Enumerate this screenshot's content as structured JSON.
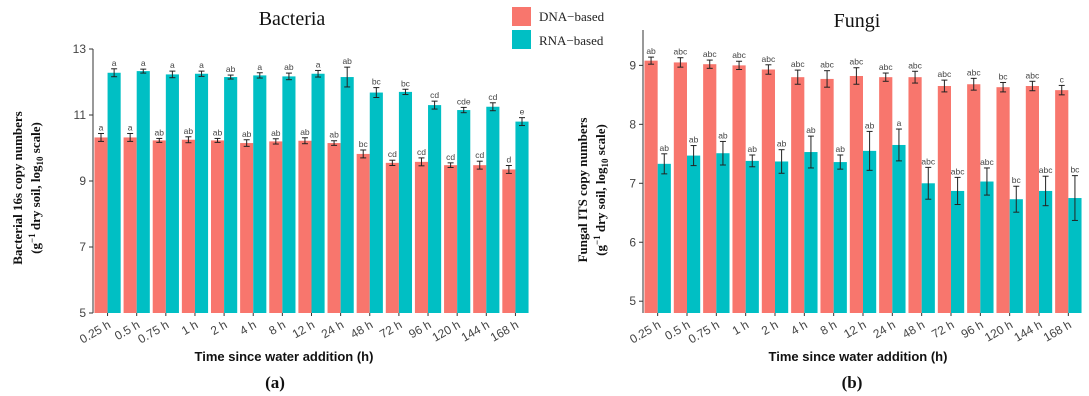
{
  "legend": [
    {
      "label": "DNA−based",
      "color": "#F8766D"
    },
    {
      "label": "RNA−based",
      "color": "#00BFC4"
    }
  ],
  "chart_data": [
    {
      "type": "bar",
      "panel_label": "(a)",
      "title": "Bacteria",
      "xlabel": "Time since water addition (h)",
      "ylabel_line1": "Bacterial 16s  copy numbers",
      "ylabel_line2_pre": "(g",
      "ylabel_line2_sup": "−1",
      "ylabel_line2_mid": " dry soil, log",
      "ylabel_line2_sub": "10",
      "ylabel_line2_post": " scale)",
      "ylim": [
        5,
        13
      ],
      "yticks": [
        5,
        7,
        9,
        11,
        13
      ],
      "categories": [
        "0.25 h",
        "0.5 h",
        "0.75 h",
        "1 h",
        "2 h",
        "4 h",
        "8 h",
        "12 h",
        "24 h",
        "48 h",
        "72 h",
        "96 h",
        "120 h",
        "144 h",
        "168 h"
      ],
      "series": [
        {
          "name": "DNA−based",
          "color": "#F8766D",
          "values": [
            10.32,
            10.32,
            10.23,
            10.25,
            10.23,
            10.15,
            10.2,
            10.22,
            10.15,
            9.82,
            9.55,
            9.58,
            9.48,
            9.48,
            9.35
          ],
          "errors": [
            0.12,
            0.12,
            0.06,
            0.09,
            0.06,
            0.1,
            0.08,
            0.09,
            0.07,
            0.12,
            0.08,
            0.12,
            0.07,
            0.12,
            0.12
          ],
          "labels": [
            "a",
            "a",
            "ab",
            "ab",
            "ab",
            "ab",
            "ab",
            "ab",
            "ab",
            "bc",
            "cd",
            "cd",
            "cd",
            "cd",
            "d"
          ]
        },
        {
          "name": "RNA−based",
          "color": "#00BFC4",
          "values": [
            12.28,
            12.33,
            12.23,
            12.25,
            12.15,
            12.2,
            12.17,
            12.25,
            12.15,
            11.68,
            11.7,
            11.3,
            11.15,
            11.25,
            10.8
          ],
          "errors": [
            0.12,
            0.06,
            0.1,
            0.08,
            0.06,
            0.08,
            0.1,
            0.1,
            0.3,
            0.15,
            0.08,
            0.12,
            0.08,
            0.12,
            0.12
          ],
          "labels": [
            "a",
            "a",
            "a",
            "a",
            "ab",
            "a",
            "ab",
            "a",
            "ab",
            "bc",
            "bc",
            "cd",
            "cde",
            "cd",
            "e"
          ]
        }
      ]
    },
    {
      "type": "bar",
      "panel_label": "(b)",
      "title": "Fungi",
      "xlabel": "Time since water addition (h)",
      "ylabel_line1": "Fungal ITS  copy numbers",
      "ylabel_line2_pre": "(g",
      "ylabel_line2_sup": "−1",
      "ylabel_line2_mid": " dry soil, log",
      "ylabel_line2_sub": "10",
      "ylabel_line2_post": " scale)",
      "ylim": [
        4.8,
        9.6
      ],
      "yticks": [
        5,
        6,
        7,
        8,
        9
      ],
      "categories": [
        "0.25 h",
        "0.5 h",
        "0.75 h",
        "1 h",
        "2 h",
        "4 h",
        "8 h",
        "12 h",
        "24 h",
        "48 h",
        "72 h",
        "96 h",
        "120 h",
        "144 h",
        "168 h"
      ],
      "series": [
        {
          "name": "DNA−based",
          "color": "#F8766D",
          "values": [
            9.08,
            9.05,
            9.02,
            9.0,
            8.93,
            8.8,
            8.77,
            8.82,
            8.8,
            8.8,
            8.65,
            8.68,
            8.63,
            8.65,
            8.58
          ],
          "errors": [
            0.06,
            0.08,
            0.07,
            0.07,
            0.08,
            0.12,
            0.14,
            0.14,
            0.07,
            0.1,
            0.1,
            0.1,
            0.08,
            0.08,
            0.08
          ],
          "labels": [
            "ab",
            "abc",
            "abc",
            "abc",
            "abc",
            "abc",
            "abc",
            "abc",
            "abc",
            "abc",
            "abc",
            "abc",
            "bc",
            "abc",
            "c"
          ]
        },
        {
          "name": "RNA−based",
          "color": "#00BFC4",
          "values": [
            7.33,
            7.47,
            7.51,
            7.38,
            7.37,
            7.53,
            7.36,
            7.55,
            7.65,
            7.0,
            6.87,
            7.03,
            6.73,
            6.87,
            6.75
          ],
          "errors": [
            0.17,
            0.17,
            0.2,
            0.1,
            0.2,
            0.27,
            0.12,
            0.33,
            0.27,
            0.27,
            0.23,
            0.23,
            0.22,
            0.25,
            0.38
          ],
          "labels": [
            "ab",
            "ab",
            "ab",
            "ab",
            "ab",
            "ab",
            "ab",
            "ab",
            "a",
            "abc",
            "abc",
            "abc",
            "bc",
            "abc",
            "bc"
          ]
        }
      ]
    }
  ]
}
